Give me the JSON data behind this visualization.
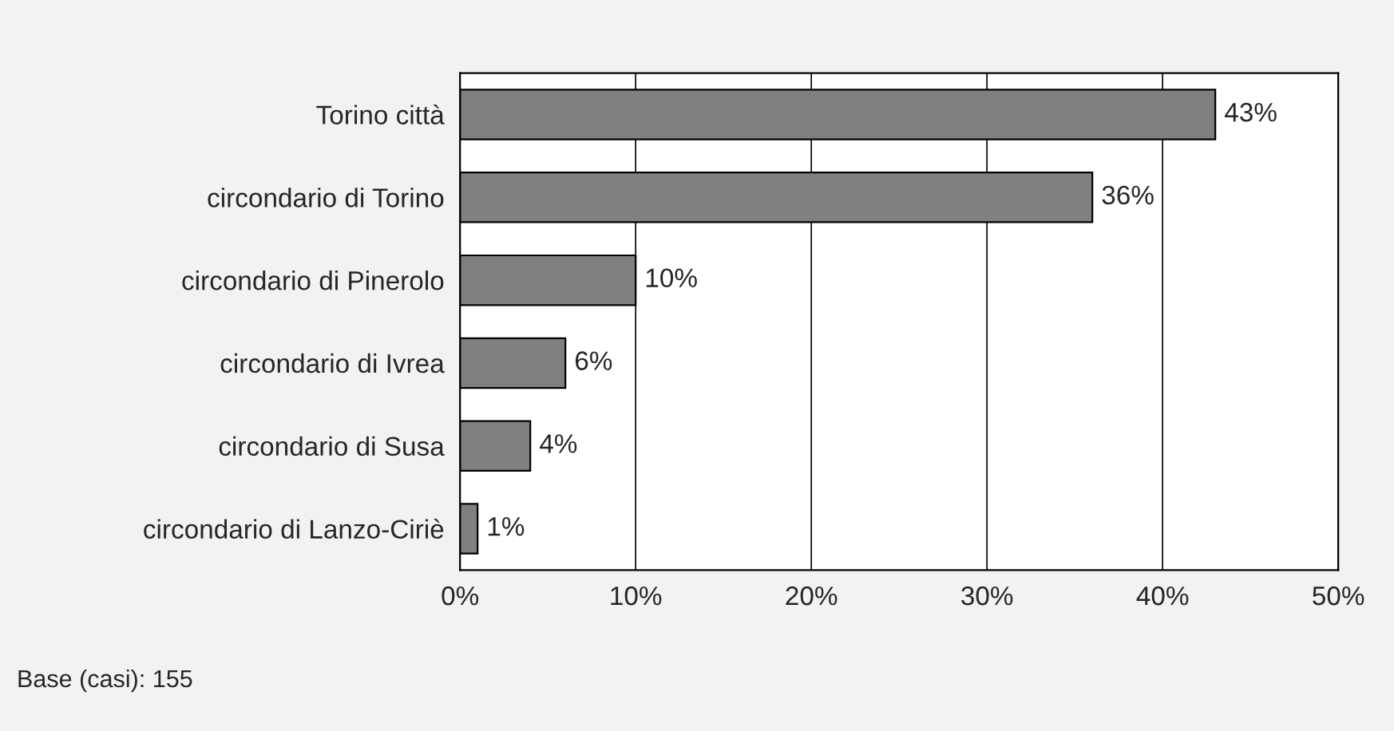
{
  "chart_data": {
    "type": "bar",
    "orientation": "horizontal",
    "categories": [
      "Torino città",
      "circondario di Torino",
      "circondario di Pinerolo",
      "circondario di Ivrea",
      "circondario di Susa",
      "circondario di Lanzo-Ciriè"
    ],
    "values": [
      43,
      36,
      10,
      6,
      4,
      1
    ],
    "value_labels": [
      "43%",
      "36%",
      "10%",
      "6%",
      "4%",
      "1%"
    ],
    "color": "#808080",
    "xlim": [
      0,
      50
    ],
    "xticks": [
      {
        "value": 0,
        "label": "0%"
      },
      {
        "value": 10,
        "label": "10%"
      },
      {
        "value": 20,
        "label": "20%"
      },
      {
        "value": 30,
        "label": "30%"
      },
      {
        "value": 40,
        "label": "40%"
      },
      {
        "value": 50,
        "label": "50%"
      }
    ],
    "grid": "x",
    "annotations": [
      "Base (casi): 155"
    ]
  }
}
